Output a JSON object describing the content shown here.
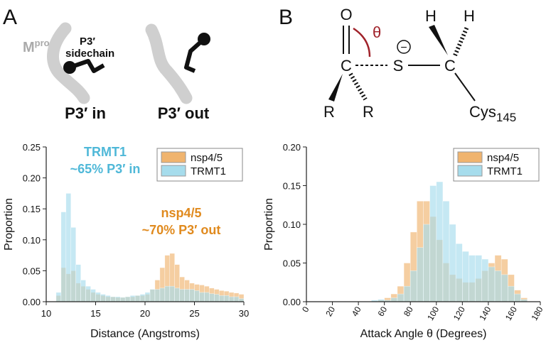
{
  "panels": {
    "a": {
      "label": "A",
      "mpro": "M",
      "mpro_sup": "pro",
      "sidechain": [
        "P3′",
        "sidechain"
      ],
      "state_in": "P3′ in",
      "state_out": "P3′ out"
    },
    "b": {
      "label": "B",
      "oxygen": "O",
      "carbonyl": "C",
      "sulfur": "S",
      "alpha_carbon": "C",
      "hydrogens": [
        "H",
        "H"
      ],
      "substituents": [
        "R",
        "R"
      ],
      "residue": "Cys",
      "residue_number": "145",
      "angle": "θ",
      "charge": "−"
    }
  },
  "chart_data": [
    {
      "type": "histogram",
      "xlabel": "Distance (Angstroms)",
      "ylabel": "Proportion",
      "bins": [
        10,
        10.5,
        11,
        11.5,
        12,
        12.5,
        13,
        13.5,
        14,
        14.5,
        15,
        15.5,
        16,
        16.5,
        17,
        17.5,
        18,
        18.5,
        19,
        19.5,
        20,
        20.5,
        21,
        21.5,
        22,
        22.5,
        23,
        23.5,
        24,
        24.5,
        25,
        25.5,
        26,
        26.5,
        27,
        27.5,
        28,
        28.5,
        29,
        29.5,
        30
      ],
      "series": [
        {
          "name": "nsp4/5",
          "color": "#f0b46e",
          "values": [
            0,
            0,
            0.01,
            0.055,
            0.045,
            0.05,
            0.03,
            0.025,
            0.02,
            0.015,
            0.012,
            0.01,
            0.008,
            0.008,
            0.007,
            0.007,
            0.008,
            0.008,
            0.01,
            0.01,
            0.012,
            0.02,
            0.035,
            0.055,
            0.075,
            0.078,
            0.06,
            0.04,
            0.035,
            0.03,
            0.028,
            0.027,
            0.025,
            0.022,
            0.02,
            0.018,
            0.017,
            0.015,
            0.014,
            0.012
          ]
        },
        {
          "name": "TRMT1",
          "color": "#a6dcec",
          "values": [
            0,
            0,
            0.015,
            0.145,
            0.175,
            0.12,
            0.06,
            0.035,
            0.025,
            0.02,
            0.015,
            0.012,
            0.01,
            0.008,
            0.008,
            0.007,
            0.008,
            0.01,
            0.01,
            0.012,
            0.015,
            0.02,
            0.02,
            0.022,
            0.025,
            0.025,
            0.022,
            0.02,
            0.02,
            0.02,
            0.018,
            0.015,
            0.015,
            0.013,
            0.012,
            0.01,
            0.01,
            0.008,
            0.008,
            0.005
          ]
        }
      ],
      "xlim": [
        10,
        30
      ],
      "xticks": [
        10,
        15,
        20,
        25,
        30
      ],
      "ylim": [
        0,
        0.25
      ],
      "yticks": [
        {
          "value": 0,
          "label": "0.00"
        },
        {
          "value": 0.05,
          "label": "0.05"
        },
        {
          "value": 0.1,
          "label": "0.10"
        },
        {
          "value": 0.15,
          "label": "0.15"
        },
        {
          "value": 0.2,
          "label": "0.20"
        },
        {
          "value": 0.25,
          "label": "0.25"
        }
      ],
      "legend": "upper right",
      "annotations": [
        {
          "lines": [
            "TRMT1",
            "~65% P3′ in"
          ],
          "color": "#4fb8d8"
        },
        {
          "lines": [
            "nsp4/5",
            "~70% P3′ out"
          ],
          "color": "#e08a1e"
        }
      ]
    },
    {
      "type": "histogram",
      "xlabel": "Attack Angle θ (Degrees)",
      "ylabel": "Proportion",
      "bins": [
        50,
        55,
        60,
        65,
        70,
        75,
        80,
        85,
        90,
        95,
        100,
        105,
        110,
        115,
        120,
        125,
        130,
        135,
        140,
        145,
        150,
        155,
        160,
        165,
        170
      ],
      "series": [
        {
          "name": "nsp4/5",
          "color": "#f0b46e",
          "values": [
            0,
            0.002,
            0.005,
            0.01,
            0.02,
            0.05,
            0.09,
            0.13,
            0.13,
            0.11,
            0.08,
            0.05,
            0.035,
            0.03,
            0.025,
            0.025,
            0.03,
            0.04,
            0.05,
            0.06,
            0.055,
            0.035,
            0.015,
            0.005
          ]
        },
        {
          "name": "TRMT1",
          "color": "#a6dcec",
          "values": [
            0.002,
            0.003,
            0.002,
            0.005,
            0.01,
            0.02,
            0.04,
            0.07,
            0.1,
            0.15,
            0.155,
            0.13,
            0.1,
            0.075,
            0.065,
            0.06,
            0.06,
            0.055,
            0.045,
            0.04,
            0.035,
            0.02,
            0.01,
            0.003
          ]
        }
      ],
      "xlim": [
        0,
        180
      ],
      "xticks": [
        0,
        20,
        40,
        60,
        80,
        100,
        120,
        140,
        160,
        180
      ],
      "ylim": [
        0,
        0.2
      ],
      "yticks": [
        {
          "value": 0,
          "label": "0.00"
        },
        {
          "value": 0.05,
          "label": "0.05"
        },
        {
          "value": 0.1,
          "label": "0.10"
        },
        {
          "value": 0.15,
          "label": "0.15"
        },
        {
          "value": 0.2,
          "label": "0.20"
        }
      ],
      "legend": "upper right"
    }
  ]
}
